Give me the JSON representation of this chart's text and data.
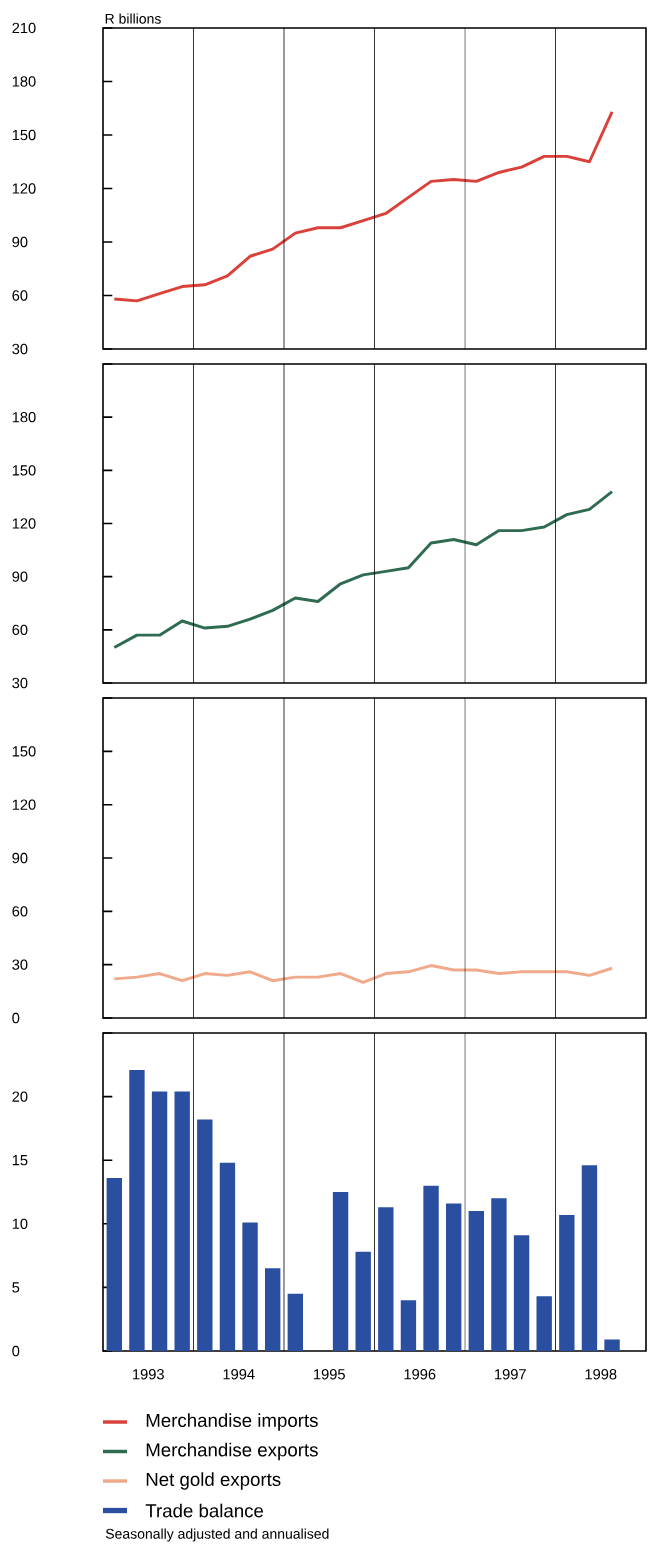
{
  "chart_data": [
    {
      "type": "line",
      "ylabel": "R billions",
      "x": [
        1993.125,
        1993.375,
        1993.625,
        1993.875,
        1994.125,
        1994.375,
        1994.625,
        1994.875,
        1995.125,
        1995.375,
        1995.625,
        1995.875,
        1996.125,
        1996.375,
        1996.625,
        1996.875,
        1997.125,
        1997.375,
        1997.625,
        1997.875,
        1998.125,
        1998.375,
        1998.625
      ],
      "xlim": [
        1993,
        1999
      ],
      "ylim": [
        30,
        210
      ],
      "yticks": [
        30,
        60,
        90,
        120,
        150,
        180,
        210
      ],
      "tick_labels": "y",
      "legend": "bottom",
      "series": [
        {
          "name": "Merchandise imports",
          "color": "#d9413a",
          "values": [
            58,
            57,
            61,
            65,
            66,
            71,
            82,
            86,
            95,
            98,
            98,
            102,
            106,
            115,
            124,
            125,
            124,
            129,
            132,
            138,
            138,
            135,
            163
          ]
        }
      ],
      "ref_lines": [
        {
          "axis": "x",
          "value": 1994,
          "color": "#000000"
        },
        {
          "axis": "x",
          "value": 1995,
          "color": "#000000"
        },
        {
          "axis": "x",
          "value": 1996,
          "color": "#000000"
        },
        {
          "axis": "x",
          "value": 1997,
          "color": "#000000"
        },
        {
          "axis": "x",
          "value": 1998,
          "color": "#000000"
        }
      ]
    },
    {
      "type": "line",
      "x": [
        1993.125,
        1993.375,
        1993.625,
        1993.875,
        1994.125,
        1994.375,
        1994.625,
        1994.875,
        1995.125,
        1995.375,
        1995.625,
        1995.875,
        1996.125,
        1996.375,
        1996.625,
        1996.875,
        1997.125,
        1997.375,
        1997.625,
        1997.875,
        1998.125,
        1998.375,
        1998.625
      ],
      "xlim": [
        1993,
        1999
      ],
      "ylim": [
        30,
        210
      ],
      "yticks": [
        30,
        60,
        90,
        120,
        150,
        180,
        {
          "value": 210,
          "label": null
        }
      ],
      "tick_labels": "y",
      "legend": "bottom",
      "series": [
        {
          "name": "Merchandise exports",
          "color": "#2f6b50",
          "values": [
            50,
            57,
            57,
            65,
            61,
            62,
            66,
            71,
            78,
            76,
            86,
            91,
            93,
            95,
            109,
            111,
            108,
            116,
            116,
            118,
            125,
            128,
            138
          ]
        }
      ],
      "ref_lines": [
        {
          "axis": "x",
          "value": 1994,
          "color": "#000000"
        },
        {
          "axis": "x",
          "value": 1995,
          "color": "#000000"
        },
        {
          "axis": "x",
          "value": 1996,
          "color": "#000000"
        },
        {
          "axis": "x",
          "value": 1997,
          "color": "#000000"
        },
        {
          "axis": "x",
          "value": 1998,
          "color": "#000000"
        }
      ]
    },
    {
      "type": "line",
      "x": [
        1993.125,
        1993.375,
        1993.625,
        1993.875,
        1994.125,
        1994.375,
        1994.625,
        1994.875,
        1995.125,
        1995.375,
        1995.625,
        1995.875,
        1996.125,
        1996.375,
        1996.625,
        1996.875,
        1997.125,
        1997.375,
        1997.625,
        1997.875,
        1998.125,
        1998.375,
        1998.625
      ],
      "xlim": [
        1993,
        1999
      ],
      "ylim": [
        0,
        180
      ],
      "yticks": [
        0,
        30,
        60,
        90,
        120,
        150,
        {
          "value": 180,
          "label": null
        }
      ],
      "tick_labels": "y",
      "legend": "bottom",
      "series": [
        {
          "name": "Net gold exports",
          "color": "#f0a98a",
          "values": [
            22,
            23,
            25,
            21,
            25,
            24,
            26,
            21,
            23,
            23,
            25,
            20,
            25,
            26,
            29.5,
            27,
            27,
            25,
            26,
            26,
            26,
            24,
            28
          ]
        }
      ],
      "ref_lines": [
        {
          "axis": "x",
          "value": 1994,
          "color": "#000000"
        },
        {
          "axis": "x",
          "value": 1995,
          "color": "#000000"
        },
        {
          "axis": "x",
          "value": 1996,
          "color": "#000000"
        },
        {
          "axis": "x",
          "value": 1997,
          "color": "#000000"
        },
        {
          "axis": "x",
          "value": 1998,
          "color": "#000000"
        }
      ]
    },
    {
      "type": "bar",
      "x": [
        1993.125,
        1993.375,
        1993.625,
        1993.875,
        1994.125,
        1994.375,
        1994.625,
        1994.875,
        1995.125,
        1995.375,
        1995.625,
        1995.875,
        1996.125,
        1996.375,
        1996.625,
        1996.875,
        1997.125,
        1997.375,
        1997.625,
        1997.875,
        1998.125,
        1998.375,
        1998.625
      ],
      "xlim": [
        1993,
        1999
      ],
      "ylim": [
        0,
        25
      ],
      "yticks": [
        0,
        5,
        10,
        15,
        20,
        {
          "value": 25,
          "label": null
        }
      ],
      "xticks": [
        {
          "value": 1993.5,
          "label": "1993"
        },
        {
          "value": 1994.5,
          "label": "1994"
        },
        {
          "value": 1995.5,
          "label": "1995"
        },
        {
          "value": 1996.5,
          "label": "1996"
        },
        {
          "value": 1997.5,
          "label": "1997"
        },
        {
          "value": 1998.5,
          "label": "1998"
        }
      ],
      "legend": "bottom",
      "series": [
        {
          "name": "Trade balance",
          "color": "#2b4fa0",
          "values": [
            13.6,
            22.1,
            20.4,
            20.4,
            18.2,
            14.8,
            10.1,
            6.5,
            4.5,
            null,
            12.5,
            7.8,
            11.3,
            4.0,
            13.0,
            11.6,
            11.0,
            12.0,
            9.1,
            4.3,
            10.7,
            14.6,
            0.9
          ]
        }
      ],
      "ref_lines": [
        {
          "axis": "x",
          "value": 1994,
          "color": "#000000"
        },
        {
          "axis": "x",
          "value": 1995,
          "color": "#000000"
        },
        {
          "axis": "x",
          "value": 1996,
          "color": "#000000"
        },
        {
          "axis": "x",
          "value": 1997,
          "color": "#000000"
        },
        {
          "axis": "x",
          "value": 1998,
          "color": "#000000"
        }
      ],
      "annotations": [
        "Seasonally adjusted and annualised"
      ]
    }
  ]
}
